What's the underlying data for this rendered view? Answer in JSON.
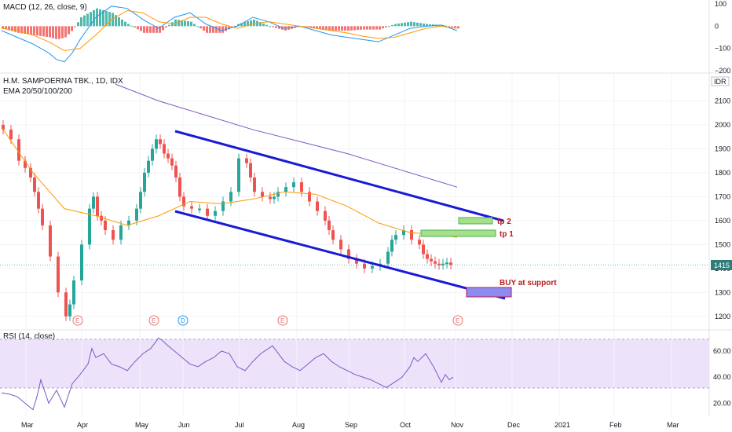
{
  "panels": {
    "macd": {
      "title": "MACD (12, 26, close, 9)"
    },
    "price": {
      "title": "H.M. SAMPOERNA TBK., 1D, IDX",
      "subtitle": "EMA 20/50/100/200",
      "currency": "IDR",
      "last_price": "1415"
    },
    "rsi": {
      "title": "RSI (14, close)"
    }
  },
  "annotations": {
    "tp2": "tp 2",
    "tp1": "tp 1",
    "buy": "BUY at support"
  },
  "chart_data": [
    {
      "type": "line",
      "title": "H.M. SAMPOERNA TBK., 1D, IDX",
      "subtitle": "EMA 20/50/100/200",
      "ylim": [
        1150,
        2200
      ],
      "y_ticks": [
        "2100",
        "2000",
        "1900",
        "1800",
        "1700",
        "1600",
        "1500",
        "1400",
        "1300",
        "1200"
      ],
      "x_ticks": [
        "Mar",
        "Apr",
        "May",
        "Jun",
        "Jul",
        "Aug",
        "Sep",
        "Oct",
        "Nov",
        "Dec",
        "2021",
        "Feb",
        "Mar"
      ],
      "series": [
        {
          "role": "close",
          "x": [
            0,
            10,
            20,
            28,
            35,
            40,
            45,
            50,
            60,
            70,
            80,
            85,
            90,
            100,
            110,
            115,
            120,
            125,
            130,
            140,
            150,
            160,
            170,
            175,
            180,
            185,
            190,
            195,
            200,
            205,
            210,
            215,
            220,
            225,
            230,
            240,
            250,
            260,
            270,
            280,
            290,
            300,
            310,
            315,
            320,
            330,
            340,
            345,
            350,
            360,
            370,
            380,
            390,
            400,
            410,
            415,
            420,
            430,
            440,
            450,
            460,
            470,
            480,
            490,
            495,
            500,
            510,
            520,
            530,
            535,
            540,
            545,
            550,
            555,
            560,
            565,
            570,
            575
          ],
          "values": [
            2000,
            1980,
            1940,
            1850,
            1820,
            1780,
            1720,
            1650,
            1580,
            1450,
            1300,
            1200,
            1250,
            1350,
            1500,
            1650,
            1700,
            1620,
            1600,
            1560,
            1520,
            1580,
            1600,
            1650,
            1720,
            1800,
            1850,
            1900,
            1940,
            1920,
            1880,
            1860,
            1830,
            1780,
            1700,
            1660,
            1650,
            1650,
            1620,
            1640,
            1680,
            1720,
            1860,
            1840,
            1780,
            1720,
            1700,
            1690,
            1700,
            1720,
            1740,
            1760,
            1720,
            1680,
            1640,
            1600,
            1560,
            1520,
            1480,
            1440,
            1420,
            1400,
            1410,
            1420,
            1470,
            1520,
            1540,
            1560,
            1520,
            1500,
            1460,
            1440,
            1430,
            1420,
            1415,
            1420,
            1425,
            1415
          ]
        },
        {
          "role": "ema200",
          "x": [
            145,
            200,
            260,
            320,
            380,
            440,
            500,
            560,
            580
          ],
          "values": [
            2170,
            2100,
            2040,
            1980,
            1930,
            1880,
            1820,
            1760,
            1740
          ]
        },
        {
          "role": "ema50",
          "x": [
            0,
            40,
            80,
            120,
            160,
            200,
            240,
            280,
            320,
            360,
            400,
            440,
            480,
            520,
            560,
            580
          ],
          "values": [
            1990,
            1800,
            1650,
            1620,
            1580,
            1620,
            1680,
            1670,
            1690,
            1720,
            1710,
            1660,
            1590,
            1550,
            1540,
            1530
          ]
        }
      ],
      "last_price": 1415
    },
    {
      "type": "line",
      "title": "MACD (12, 26, close, 9)",
      "ylim": [
        -200,
        100
      ],
      "y_ticks": [
        "100",
        "0",
        "−100",
        "−200"
      ],
      "series": [
        {
          "role": "macd",
          "x": [
            0,
            20,
            40,
            60,
            70,
            80,
            90,
            100,
            120,
            140,
            160,
            180,
            200,
            220,
            240,
            260,
            280,
            300,
            320,
            340,
            360,
            380,
            400,
            420,
            440,
            460,
            480,
            500,
            520,
            540,
            560,
            580
          ],
          "values": [
            -20,
            -50,
            -80,
            -120,
            -150,
            -160,
            -120,
            -60,
            40,
            90,
            80,
            30,
            -10,
            40,
            60,
            10,
            -20,
            0,
            40,
            20,
            -10,
            0,
            -20,
            -40,
            -50,
            -60,
            -70,
            -40,
            -10,
            0,
            5,
            -20
          ]
        },
        {
          "role": "signal",
          "x": [
            0,
            20,
            40,
            60,
            80,
            100,
            120,
            140,
            160,
            180,
            200,
            220,
            240,
            260,
            280,
            300,
            320,
            340,
            360,
            380,
            400,
            420,
            440,
            460,
            480,
            500,
            520,
            540,
            560,
            580
          ],
          "values": [
            -10,
            -20,
            -40,
            -70,
            -110,
            -100,
            -40,
            30,
            70,
            60,
            20,
            10,
            40,
            40,
            10,
            -10,
            10,
            20,
            10,
            0,
            -10,
            -20,
            -30,
            -45,
            -55,
            -50,
            -30,
            -10,
            0,
            -10
          ]
        }
      ]
    },
    {
      "type": "line",
      "title": "RSI (14, close)",
      "ylim": [
        10,
        75
      ],
      "y_ticks": [
        "60.00",
        "40.00",
        "20.00"
      ],
      "bands": [
        70,
        30
      ],
      "series": [
        {
          "role": "rsi",
          "x": [
            0,
            10,
            20,
            30,
            40,
            45,
            50,
            60,
            70,
            80,
            90,
            100,
            110,
            115,
            120,
            130,
            140,
            150,
            160,
            170,
            180,
            190,
            200,
            205,
            210,
            220,
            230,
            240,
            250,
            260,
            270,
            280,
            290,
            300,
            310,
            320,
            330,
            340,
            345,
            350,
            360,
            370,
            380,
            390,
            400,
            410,
            420,
            430,
            440,
            450,
            460,
            470,
            480,
            490,
            500,
            510,
            520,
            525,
            530,
            540,
            550,
            560,
            565,
            570,
            575
          ],
          "values": [
            28,
            27,
            25,
            20,
            15,
            25,
            38,
            20,
            30,
            17,
            35,
            42,
            50,
            62,
            55,
            58,
            50,
            48,
            45,
            52,
            58,
            62,
            70,
            68,
            65,
            60,
            55,
            50,
            48,
            52,
            55,
            60,
            58,
            48,
            45,
            52,
            58,
            62,
            64,
            60,
            52,
            48,
            45,
            50,
            55,
            58,
            52,
            48,
            45,
            42,
            40,
            38,
            35,
            32,
            36,
            40,
            48,
            55,
            52,
            58,
            48,
            36,
            42,
            38,
            40
          ]
        }
      ]
    }
  ]
}
